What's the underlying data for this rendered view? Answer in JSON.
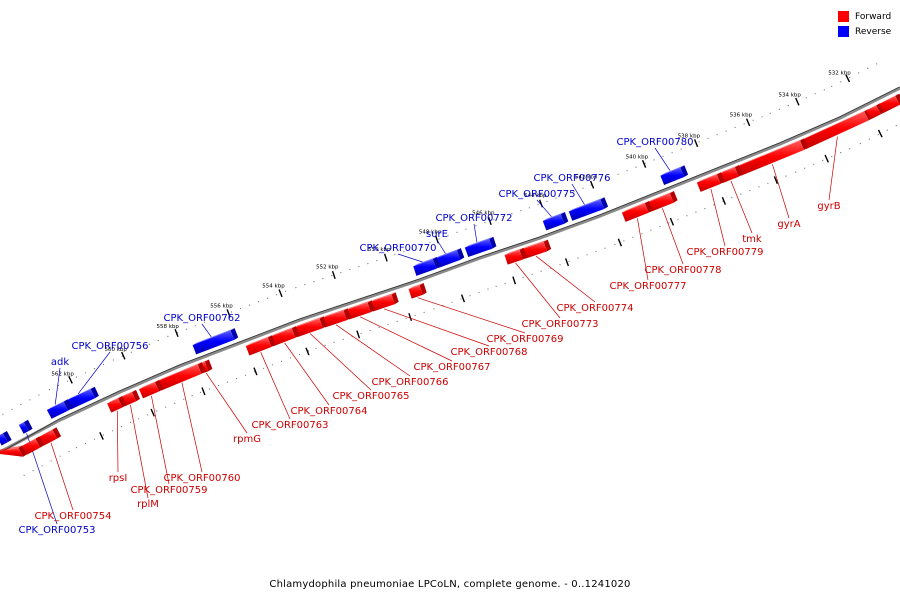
{
  "legend": {
    "items": [
      {
        "label": "Forward",
        "color": "#ff0000"
      },
      {
        "label": "Reverse",
        "color": "#0000ff"
      }
    ]
  },
  "caption": "Chlamydophila pneumoniae LPCoLN, complete genome. - 0..1241020",
  "colors": {
    "forward": "#ff0000",
    "forward_dark": "#b30000",
    "reverse": "#0000ff",
    "reverse_dark": "#0000aa",
    "forward_label": "#cc0000",
    "reverse_label": "#0000cc"
  },
  "ruler": {
    "ticks": [
      "532 kbp",
      "534 kbp",
      "536 kbp",
      "538 kbp",
      "540 kbp",
      "542 kbp",
      "544 kbp",
      "546 kbp",
      "548 kbp",
      "550 kbp",
      "552 kbp",
      "554 kbp",
      "556 kbp",
      "558 kbp",
      "560 kbp",
      "562 kbp"
    ]
  },
  "forward_genes": [
    "gyrB",
    "gyrA",
    "tmk",
    "CPK_ORF00779",
    "CPK_ORF00778",
    "CPK_ORF00777",
    "CPK_ORF00774",
    "CPK_ORF00773",
    "CPK_ORF00769",
    "CPK_ORF00768",
    "CPK_ORF00767",
    "CPK_ORF00766",
    "CPK_ORF00765",
    "CPK_ORF00764",
    "CPK_ORF00763",
    "rpmG",
    "CPK_ORF00760",
    "CPK_ORF00759",
    "rplM",
    "rpsI",
    "CPK_ORF00754"
  ],
  "reverse_genes": [
    "CPK_ORF00780",
    "CPK_ORF00776",
    "CPK_ORF00775",
    "CPK_ORF00772",
    "surE",
    "CPK_ORF00770",
    "CPK_ORF00762",
    "CPK_ORF00756",
    "adk",
    "CPK_ORF00753"
  ]
}
